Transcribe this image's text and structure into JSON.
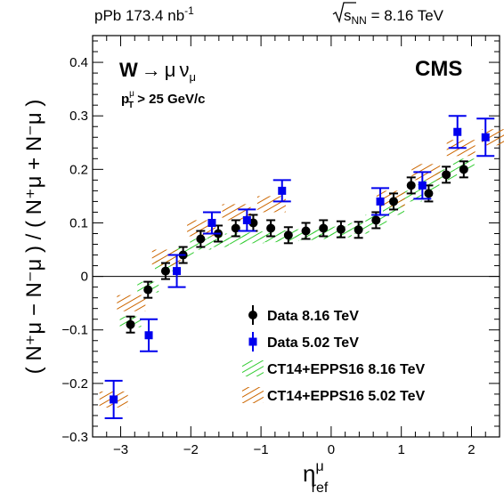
{
  "chart_data": {
    "type": "scatter",
    "header_left": {
      "text": "pPb 173.4 nb",
      "sup": "-1"
    },
    "header_right": {
      "sqrt_label": "s",
      "sqrt_sub": "NN",
      "value": " = 8.16 TeV"
    },
    "cms_label": "CMS",
    "process": {
      "w": "W",
      "arrow": "→",
      "mu": "μ",
      "nu": "ν",
      "nu_sub": "μ"
    },
    "cut": {
      "p": "p",
      "p_sup": "μ",
      "p_sub": "T",
      "rest": " > 25 GeV/c"
    },
    "xlabel": {
      "main": "η",
      "sup": "μ",
      "sub": "ref"
    },
    "ylabel": "( N⁺μ − N⁻μ ) / ( N⁺μ + N⁻μ )",
    "xlim": [
      -3.4,
      2.4
    ],
    "ylim": [
      -0.3,
      0.45
    ],
    "xticks": [
      -3,
      -2,
      -1,
      0,
      1,
      2
    ],
    "xtick_labels": [
      "−3",
      "−2",
      "−1",
      "0",
      "1",
      "2"
    ],
    "yticks": [
      -0.3,
      -0.2,
      -0.1,
      0,
      0.1,
      0.2,
      0.3,
      0.4
    ],
    "ytick_labels": [
      "−0.3",
      "−0.2",
      "−0.1",
      "0",
      "0.1",
      "0.2",
      "0.3",
      "0.4"
    ],
    "zero_line": true,
    "legend_position": "bottom-right",
    "series": [
      {
        "name": "Data 8.16 TeV",
        "color": "#000000",
        "marker": "circle",
        "x": [
          -2.86,
          -2.61,
          -2.36,
          -2.11,
          -1.86,
          -1.61,
          -1.36,
          -1.11,
          -0.86,
          -0.61,
          -0.36,
          -0.11,
          0.14,
          0.39,
          0.64,
          0.89,
          1.14,
          1.39,
          1.64,
          1.89
        ],
        "y": [
          -0.09,
          -0.025,
          0.01,
          0.04,
          0.07,
          0.08,
          0.09,
          0.1,
          0.09,
          0.077,
          0.085,
          0.09,
          0.088,
          0.087,
          0.105,
          0.14,
          0.17,
          0.155,
          0.19,
          0.2
        ],
        "err": [
          0.015,
          0.015,
          0.015,
          0.015,
          0.015,
          0.015,
          0.015,
          0.015,
          0.015,
          0.015,
          0.015,
          0.015,
          0.015,
          0.015,
          0.015,
          0.015,
          0.015,
          0.015,
          0.015,
          0.015
        ]
      },
      {
        "name": "Data 5.02 TeV",
        "color": "#0000ee",
        "marker": "square",
        "x": [
          -3.1,
          -2.6,
          -2.2,
          -1.7,
          -1.2,
          -0.7,
          0.7,
          1.3,
          1.8,
          2.2
        ],
        "y": [
          -0.23,
          -0.11,
          0.01,
          0.1,
          0.105,
          0.16,
          0.14,
          0.17,
          0.27,
          0.26
        ],
        "err": [
          0.035,
          0.03,
          0.03,
          0.02,
          0.02,
          0.02,
          0.025,
          0.025,
          0.03,
          0.035
        ]
      },
      {
        "name": "CT14+EPPS16 8.16 TeV",
        "color": "#33cc33",
        "marker": "hatch-band",
        "x": [
          -2.86,
          -2.61,
          -2.36,
          -2.11,
          -1.86,
          -1.61,
          -1.36,
          -1.11,
          -0.86,
          -0.61,
          -0.36,
          -0.11,
          0.14,
          0.39,
          0.64,
          0.89,
          1.14,
          1.39,
          1.64,
          1.89
        ],
        "y": [
          -0.085,
          -0.02,
          0.02,
          0.045,
          0.06,
          0.065,
          0.07,
          0.072,
          0.074,
          0.076,
          0.078,
          0.08,
          0.083,
          0.09,
          0.105,
          0.125,
          0.15,
          0.17,
          0.19,
          0.21
        ],
        "err": [
          0.01,
          0.01,
          0.01,
          0.01,
          0.01,
          0.01,
          0.01,
          0.01,
          0.01,
          0.01,
          0.01,
          0.01,
          0.01,
          0.01,
          0.01,
          0.01,
          0.01,
          0.01,
          0.01,
          0.01
        ]
      },
      {
        "name": "CT14+EPPS16 5.02 TeV",
        "color": "#cc6600",
        "marker": "hatch-band",
        "x": [
          -3.1,
          -2.85,
          -2.35,
          -1.85,
          -1.35,
          -0.85,
          0.85,
          1.35,
          1.85,
          2.35
        ],
        "y": [
          -0.23,
          -0.05,
          0.035,
          0.09,
          0.12,
          0.135,
          0.145,
          0.195,
          0.24,
          0.26
        ],
        "err": [
          0.015,
          0.015,
          0.015,
          0.015,
          0.015,
          0.015,
          0.015,
          0.015,
          0.015,
          0.015
        ]
      }
    ]
  }
}
